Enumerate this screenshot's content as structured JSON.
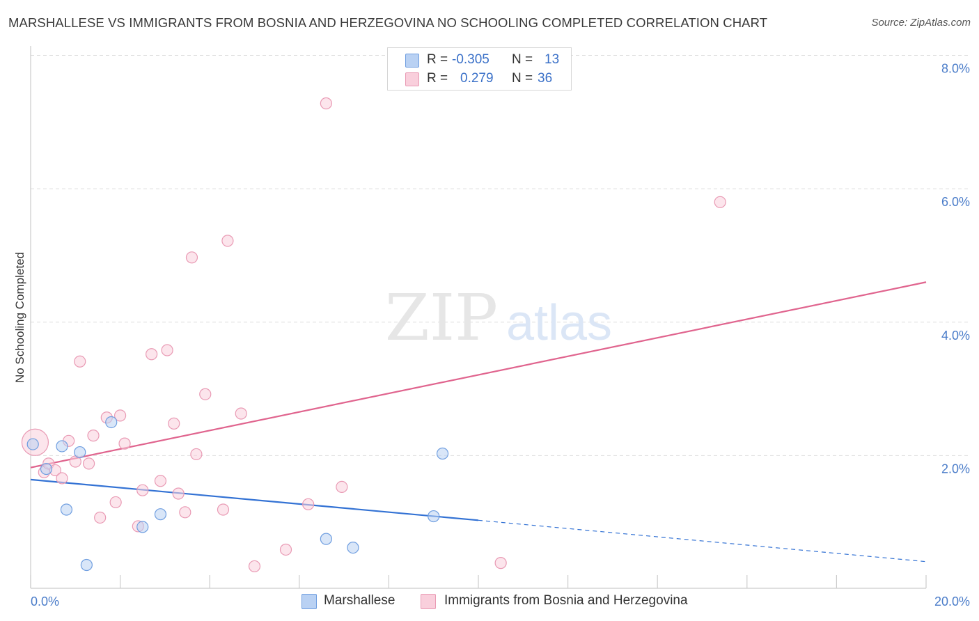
{
  "header": {
    "title": "MARSHALLESE VS IMMIGRANTS FROM BOSNIA AND HERZEGOVINA NO SCHOOLING COMPLETED CORRELATION CHART",
    "source": "Source: ZipAtlas.com"
  },
  "watermark": {
    "zip": "ZIP",
    "atlas": "atlas"
  },
  "colors": {
    "blue_fill": "#b9d1f3",
    "blue_stroke": "#6f9ee0",
    "blue_line": "#3372d4",
    "pink_fill": "#f9cfdc",
    "pink_stroke": "#e99ab4",
    "pink_line": "#e0648e",
    "tick_text": "#4a7cc9",
    "grid": "#dddddd"
  },
  "legend": {
    "rows": [
      {
        "r_label": "R =",
        "r_value": "-0.305",
        "n_label": "N =",
        "n_value": "13"
      },
      {
        "r_label": "R =",
        "r_value": "0.279",
        "n_label": "N =",
        "n_value": "36"
      }
    ]
  },
  "bottom_legend": {
    "items": [
      {
        "label": "Marshallese"
      },
      {
        "label": "Immigrants from Bosnia and Herzegovina"
      }
    ]
  },
  "chart_data": {
    "type": "scatter",
    "title": "MARSHALLESE VS IMMIGRANTS FROM BOSNIA AND HERZEGOVINA NO SCHOOLING COMPLETED CORRELATION CHART",
    "xlabel": "",
    "ylabel": "No Schooling Completed",
    "xlim": [
      0,
      20
    ],
    "ylim": [
      0,
      8
    ],
    "x_tick_labels": [
      "0.0%",
      "20.0%"
    ],
    "y_ticks": [
      2,
      4,
      6,
      8
    ],
    "y_tick_labels": [
      "2.0%",
      "4.0%",
      "6.0%",
      "8.0%"
    ],
    "grid": true,
    "legend_position": "top-center",
    "series": [
      {
        "name": "Marshallese",
        "color": "#6f9ee0",
        "r": -0.305,
        "n": 13,
        "points": [
          [
            0.05,
            2.17
          ],
          [
            0.35,
            1.8
          ],
          [
            0.7,
            2.14
          ],
          [
            1.1,
            2.05
          ],
          [
            0.8,
            1.19
          ],
          [
            1.8,
            2.5
          ],
          [
            2.5,
            0.93
          ],
          [
            2.9,
            1.12
          ],
          [
            6.6,
            0.75
          ],
          [
            1.25,
            0.36
          ],
          [
            7.2,
            0.62
          ],
          [
            9.2,
            2.03
          ],
          [
            9.0,
            1.09
          ]
        ],
        "trend": {
          "x0": 0,
          "y0": 1.64,
          "x1": 10,
          "y1": 1.03,
          "dash_to_x": 20,
          "dash_to_y": 0.41
        }
      },
      {
        "name": "Immigrants from Bosnia and Herzegovina",
        "color": "#e99ab4",
        "r": 0.279,
        "n": 36,
        "points": [
          [
            0.1,
            2.2
          ],
          [
            0.3,
            1.75
          ],
          [
            0.4,
            1.88
          ],
          [
            0.55,
            1.78
          ],
          [
            0.7,
            1.66
          ],
          [
            0.85,
            2.22
          ],
          [
            1.0,
            1.91
          ],
          [
            1.1,
            3.41
          ],
          [
            1.3,
            1.88
          ],
          [
            1.4,
            2.3
          ],
          [
            1.55,
            1.07
          ],
          [
            1.7,
            2.57
          ],
          [
            1.9,
            1.3
          ],
          [
            2.0,
            2.6
          ],
          [
            2.1,
            2.18
          ],
          [
            2.4,
            0.94
          ],
          [
            2.5,
            1.48
          ],
          [
            2.7,
            3.52
          ],
          [
            2.9,
            1.62
          ],
          [
            3.05,
            3.58
          ],
          [
            3.2,
            2.48
          ],
          [
            3.3,
            1.43
          ],
          [
            3.45,
            1.15
          ],
          [
            3.6,
            4.97
          ],
          [
            3.7,
            2.02
          ],
          [
            3.9,
            2.92
          ],
          [
            4.3,
            1.19
          ],
          [
            4.4,
            5.22
          ],
          [
            4.7,
            2.63
          ],
          [
            5.0,
            0.34
          ],
          [
            5.7,
            0.59
          ],
          [
            6.2,
            1.27
          ],
          [
            6.6,
            7.28
          ],
          [
            6.95,
            1.53
          ],
          [
            10.5,
            0.39
          ],
          [
            15.4,
            5.8
          ]
        ],
        "trend": {
          "x0": 0,
          "y0": 1.82,
          "x1": 20,
          "y1": 4.6
        }
      }
    ]
  }
}
